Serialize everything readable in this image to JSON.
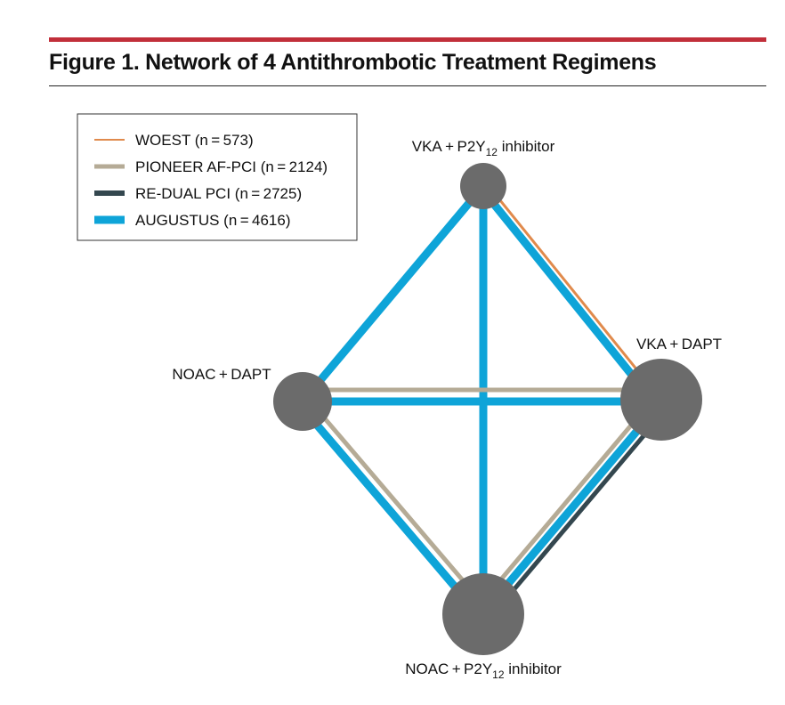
{
  "figure": {
    "title": "Figure 1. Network of 4 Antithrombotic Treatment Regimens"
  },
  "legend": [
    {
      "label": "WOEST (n = 573)",
      "color": "#e08a4c"
    },
    {
      "label": "PIONEER AF-PCI (n = 2124)",
      "color": "#b5ab96"
    },
    {
      "label": "RE-DUAL PCI (n = 2725)",
      "color": "#34474f"
    },
    {
      "label": "AUGUSTUS (n = 4616)",
      "color": "#0ea4d8"
    }
  ],
  "nodes": [
    {
      "id": "vka_p2y12",
      "label": "VKA + P2Y",
      "subscript": "12",
      "suffix": " inhibitor"
    },
    {
      "id": "vka_dapt",
      "label": "VKA + DAPT"
    },
    {
      "id": "noac_dapt",
      "label": "NOAC + DAPT"
    },
    {
      "id": "noac_p2y12",
      "label": "NOAC + P2Y",
      "subscript": "12",
      "suffix": " inhibitor"
    }
  ],
  "edges": [
    {
      "from": "vka_p2y12",
      "to": "vka_dapt",
      "trials": [
        "WOEST",
        "AUGUSTUS"
      ]
    },
    {
      "from": "vka_p2y12",
      "to": "noac_dapt",
      "trials": [
        "AUGUSTUS"
      ]
    },
    {
      "from": "vka_p2y12",
      "to": "noac_p2y12",
      "trials": [
        "AUGUSTUS"
      ]
    },
    {
      "from": "noac_dapt",
      "to": "vka_dapt",
      "trials": [
        "PIONEER AF-PCI",
        "AUGUSTUS"
      ]
    },
    {
      "from": "noac_dapt",
      "to": "noac_p2y12",
      "trials": [
        "PIONEER AF-PCI",
        "AUGUSTUS"
      ]
    },
    {
      "from": "vka_dapt",
      "to": "noac_p2y12",
      "trials": [
        "PIONEER AF-PCI",
        "AUGUSTUS",
        "RE-DUAL PCI"
      ]
    }
  ],
  "colors": {
    "node": "#6b6b6b",
    "accent_bar": "#c12f3a"
  }
}
